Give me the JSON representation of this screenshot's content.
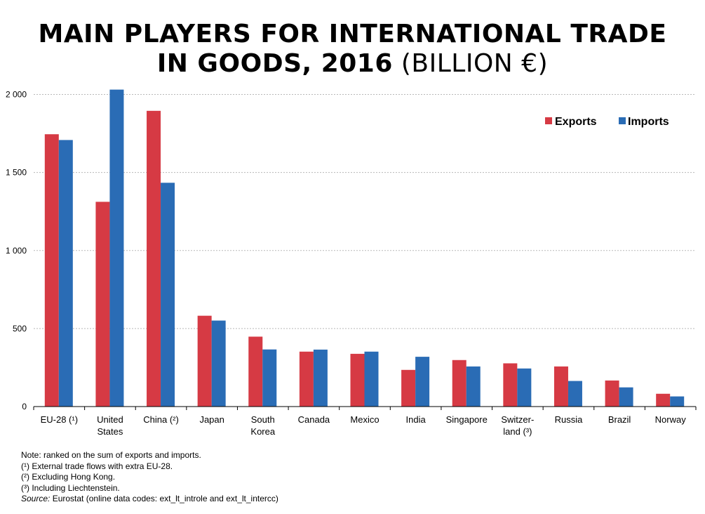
{
  "title": {
    "line1": "MAIN PLAYERS FOR INTERNATIONAL TRADE",
    "line2_bold": "IN GOODS, 2016",
    "line2_unit": "(BILLION €)"
  },
  "notes": {
    "note": "Note: ranked on the sum of exports and imports.",
    "fn1": "(¹) External trade flows with extra EU-28.",
    "fn2": "(²) Excluding Hong Kong.",
    "fn3": "(³) Including Liechtenstein.",
    "source_label": "Source:",
    "source_text": "Eurostat (online data codes: ext_lt_introle and ext_lt_intercc)"
  },
  "chart_data": {
    "type": "bar",
    "categories": [
      [
        "EU-28 (¹)"
      ],
      [
        "United",
        "States"
      ],
      [
        "China (²)"
      ],
      [
        "Japan"
      ],
      [
        "South",
        "Korea"
      ],
      [
        "Canada"
      ],
      [
        "Mexico"
      ],
      [
        "India"
      ],
      [
        "Singapore"
      ],
      [
        "Switzer-",
        "land (³)"
      ],
      [
        "Russia"
      ],
      [
        "Brazil"
      ],
      [
        "Norway"
      ]
    ],
    "series": [
      {
        "name": "Exports",
        "color": "#d63a44",
        "values": [
          1745,
          1312,
          1895,
          582,
          448,
          352,
          338,
          235,
          298,
          277,
          257,
          167,
          82
        ]
      },
      {
        "name": "Imports",
        "color": "#2a6cb5",
        "values": [
          1708,
          2031,
          1434,
          551,
          366,
          365,
          352,
          319,
          257,
          244,
          164,
          123,
          65
        ]
      }
    ],
    "yticks": [
      0,
      500,
      1000,
      1500,
      2000
    ],
    "ytick_labels": [
      "0",
      "500",
      "1 000",
      "1 500",
      "2 000"
    ],
    "ylim": [
      0,
      2000
    ],
    "grid": true,
    "legend_position": "top-right"
  }
}
